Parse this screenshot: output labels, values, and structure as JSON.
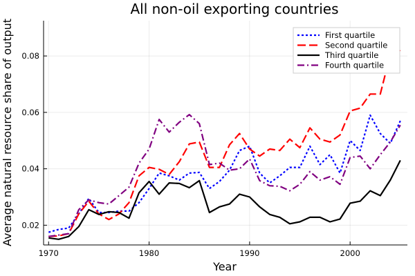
{
  "chart_data": {
    "type": "line",
    "title": "All non-oil exporting countries",
    "xlabel": "Year",
    "ylabel": "Average natural resource share of output",
    "xlim": [
      1969.5,
      2005.7
    ],
    "ylim": [
      0.013,
      0.0925
    ],
    "xticks": [
      1970,
      1980,
      1990,
      2000
    ],
    "xtick_labels": [
      "1970",
      "1980",
      "1990",
      "2000"
    ],
    "yticks": [
      0.02,
      0.04,
      0.06,
      0.08
    ],
    "ytick_labels": [
      "0.02",
      "0.04",
      "0.06",
      "0.08"
    ],
    "grid": true,
    "legend": "top-right",
    "x": [
      1970,
      1971,
      1972,
      1973,
      1974,
      1975,
      1976,
      1977,
      1978,
      1979,
      1980,
      1981,
      1982,
      1983,
      1984,
      1985,
      1986,
      1987,
      1988,
      1989,
      1990,
      1991,
      1992,
      1993,
      1994,
      1995,
      1996,
      1997,
      1998,
      1999,
      2000,
      2001,
      2002,
      2003,
      2004,
      2005
    ],
    "series": [
      {
        "name": "First quartile",
        "color": "#0000ff",
        "dash": "3,3",
        "values": [
          0.0175,
          0.0185,
          0.019,
          0.024,
          0.0295,
          0.0245,
          0.0245,
          0.025,
          0.025,
          0.028,
          0.033,
          0.0385,
          0.0375,
          0.036,
          0.0385,
          0.0387,
          0.033,
          0.0355,
          0.0395,
          0.0465,
          0.048,
          0.0385,
          0.035,
          0.0375,
          0.0405,
          0.0405,
          0.048,
          0.0415,
          0.045,
          0.0385,
          0.05,
          0.0465,
          0.059,
          0.0525,
          0.049,
          0.057
        ]
      },
      {
        "name": "Second quartile",
        "color": "#ff0000",
        "dash": "12,5",
        "values": [
          0.016,
          0.0162,
          0.017,
          0.024,
          0.0285,
          0.024,
          0.022,
          0.024,
          0.028,
          0.0375,
          0.0405,
          0.0398,
          0.038,
          0.0425,
          0.0488,
          0.0495,
          0.0405,
          0.0405,
          0.0485,
          0.0525,
          0.047,
          0.0445,
          0.047,
          0.0465,
          0.0505,
          0.0475,
          0.0545,
          0.0505,
          0.0495,
          0.052,
          0.0605,
          0.0615,
          0.0665,
          0.0665,
          0.0805,
          0.082
        ]
      },
      {
        "name": "Third quartile",
        "color": "#000000",
        "dash": "",
        "values": [
          0.0155,
          0.015,
          0.016,
          0.0195,
          0.0255,
          0.0238,
          0.0248,
          0.0245,
          0.0225,
          0.0315,
          0.0355,
          0.031,
          0.035,
          0.0348,
          0.0333,
          0.0358,
          0.0245,
          0.0265,
          0.0275,
          0.031,
          0.03,
          0.0265,
          0.0238,
          0.0228,
          0.0205,
          0.0212,
          0.0228,
          0.0228,
          0.0212,
          0.0222,
          0.0278,
          0.0285,
          0.0322,
          0.0305,
          0.036,
          0.043
        ]
      },
      {
        "name": "Fourth quartile",
        "color": "#800080",
        "dash": "10,4,2,4",
        "values": [
          0.016,
          0.0165,
          0.017,
          0.0255,
          0.029,
          0.028,
          0.0275,
          0.0305,
          0.0335,
          0.042,
          0.047,
          0.0575,
          0.053,
          0.0565,
          0.0592,
          0.056,
          0.0415,
          0.042,
          0.0395,
          0.04,
          0.0435,
          0.0358,
          0.034,
          0.0338,
          0.0322,
          0.0345,
          0.039,
          0.036,
          0.0372,
          0.0345,
          0.044,
          0.0445,
          0.04,
          0.045,
          0.0495,
          0.0555
        ]
      }
    ]
  }
}
